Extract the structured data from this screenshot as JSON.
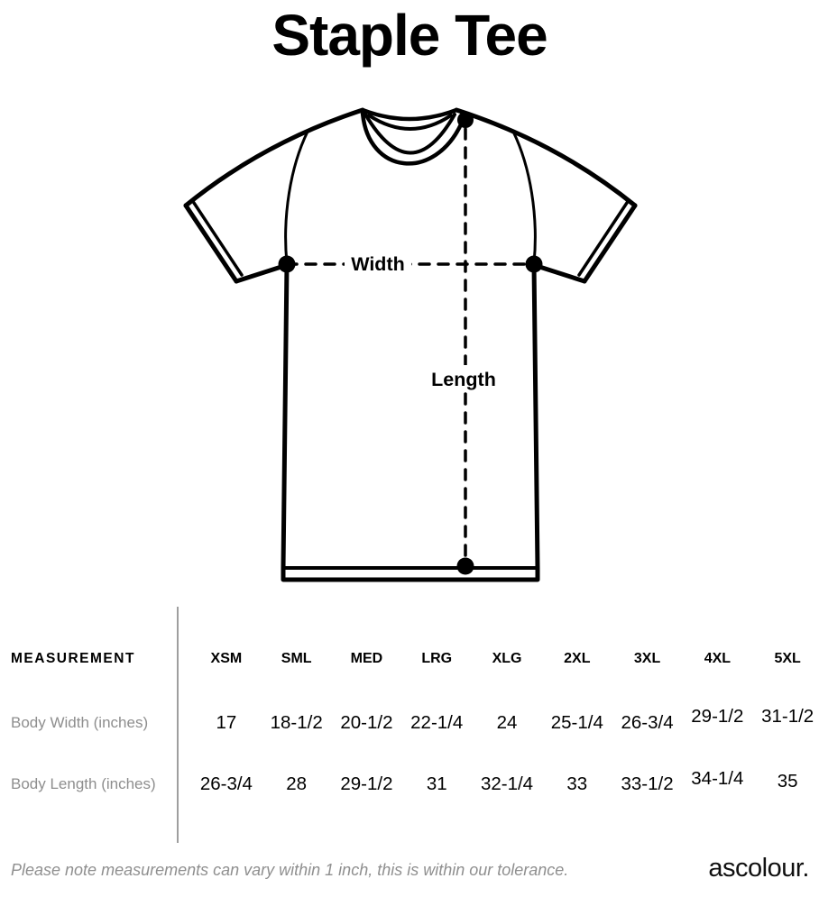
{
  "page": {
    "title": "Staple Tee",
    "footnote": "Please note measurements can vary within 1 inch, this is within our tolerance.",
    "brand": "ascolour."
  },
  "diagram": {
    "width_label": "Width",
    "length_label": "Length"
  },
  "size_table": {
    "measurement_header": "MEASUREMENT",
    "columns": [
      "XSM",
      "SML",
      "MED",
      "LRG",
      "XLG",
      "2XL",
      "3XL",
      "4XL",
      "5XL"
    ],
    "rows": [
      {
        "label": "Body Width (inches)",
        "values": [
          "17",
          "18-1/2",
          "20-1/2",
          "22-1/4",
          "24",
          "25-1/4",
          "26-3/4",
          "29-1/2",
          "31-1/2"
        ]
      },
      {
        "label": "Body Length (inches)",
        "values": [
          "26-3/4",
          "28",
          "29-1/2",
          "31",
          "32-1/4",
          "33",
          "33-1/2",
          "34-1/4",
          "35"
        ]
      }
    ]
  },
  "colors": {
    "ink": "#000000",
    "muted_text": "#8e8e8e",
    "divider": "#9e9e9e"
  }
}
